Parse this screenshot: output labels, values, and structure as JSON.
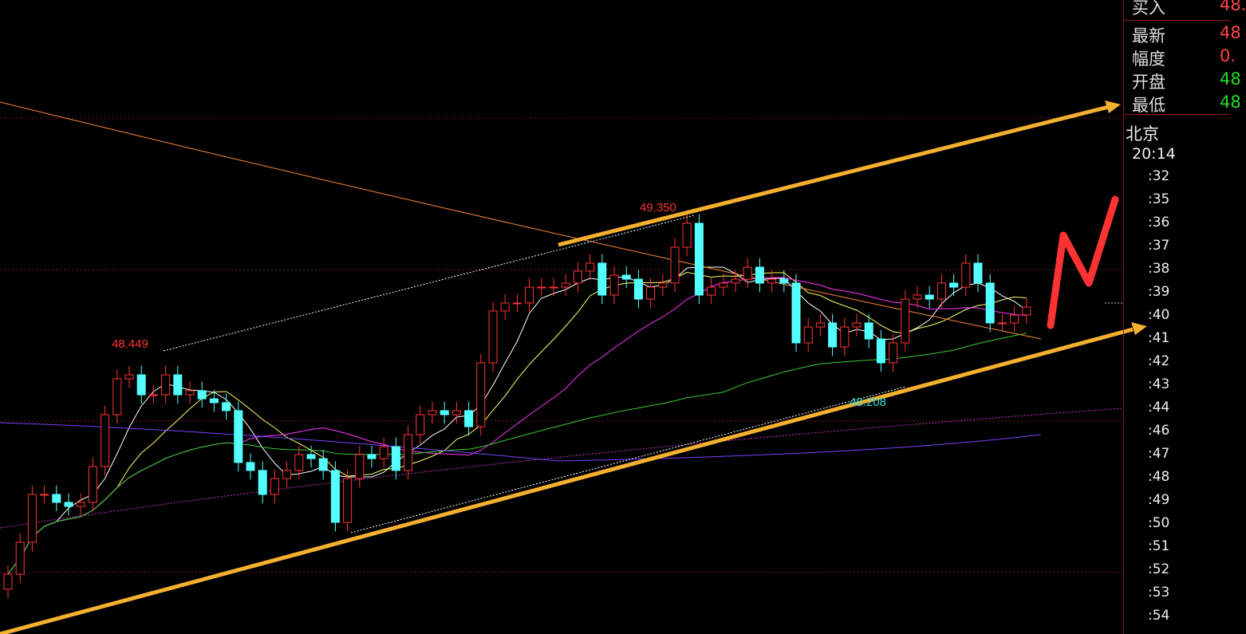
{
  "chart_data": {
    "type": "candlestick",
    "close": [
      46.956,
      47.169,
      47.488,
      47.488,
      47.435,
      47.408,
      47.435,
      47.674,
      48.02,
      48.259,
      48.286,
      48.153,
      48.153,
      48.286,
      48.153,
      48.18,
      48.126,
      48.1,
      48.047,
      47.701,
      47.648,
      47.488,
      47.594,
      47.648,
      47.754,
      47.727,
      47.648,
      47.302,
      47.594,
      47.754,
      47.727,
      47.807,
      47.648,
      47.887,
      48.02,
      48.047,
      48.02,
      48.047,
      47.94,
      48.366,
      48.712,
      48.765,
      48.765,
      48.871,
      48.871,
      48.871,
      48.898,
      48.978,
      49.031,
      48.818,
      48.951,
      48.924,
      48.791,
      48.871,
      48.898,
      49.137,
      49.297,
      48.818,
      48.871,
      48.898,
      48.924,
      49.004,
      48.898,
      48.924,
      48.898,
      48.499,
      48.605,
      48.632,
      48.472,
      48.605,
      48.632,
      48.525,
      48.366,
      48.499,
      48.791,
      48.818,
      48.791,
      48.898,
      48.871,
      49.031,
      48.898,
      48.632,
      48.632,
      48.685,
      48.738
    ],
    "annotations": [
      {
        "text": "49.350",
        "price": 49.35,
        "color": "#ff3333"
      },
      {
        "text": "48.449",
        "price": 48.449,
        "color": "#ff3333"
      },
      {
        "text": "48.208",
        "price": 48.208,
        "color": "#33dddd"
      }
    ],
    "up_color": "#ff3333",
    "down_color": "#54ffff",
    "ylim": [
      46.56,
      50.85
    ]
  },
  "panel": {
    "rows": [
      {
        "label": "买入",
        "value": "48.",
        "color": "#ff4444"
      },
      {
        "label": "最新",
        "value": "48",
        "color": "#ff4444"
      },
      {
        "label": "幅度",
        "value": "0.",
        "color": "#ff4444"
      },
      {
        "label": "开盘",
        "value": "48",
        "color": "#22dd22"
      },
      {
        "label": "最低",
        "value": "48",
        "color": "#22dd22"
      }
    ],
    "city": "北京",
    "time": "20:14",
    "ticks": [
      ":32",
      ":35",
      ":36",
      ":37",
      ":38",
      ":39",
      ":40",
      ":41",
      ":42",
      ":43",
      ":44",
      ":46",
      ":47",
      ":48",
      ":49",
      ":50",
      ":51",
      ":52",
      ":53",
      ":54"
    ]
  }
}
